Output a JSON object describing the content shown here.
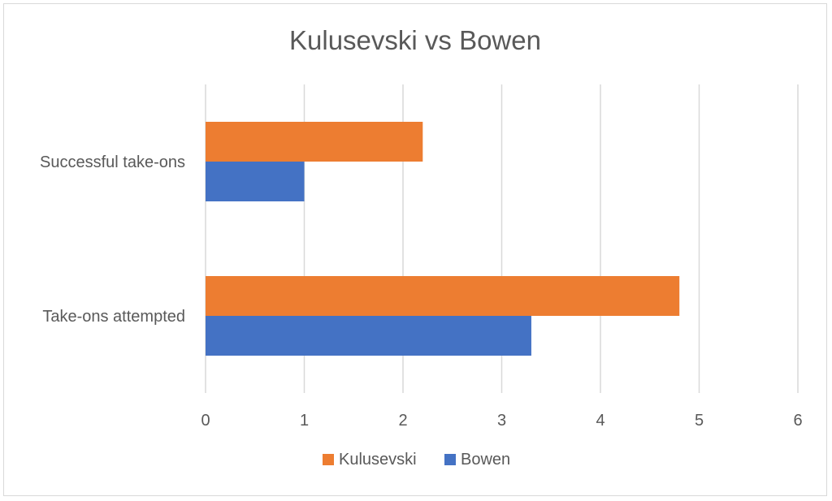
{
  "chart_data": {
    "type": "bar",
    "orientation": "horizontal",
    "title": "Kulusevski vs Bowen",
    "categories": [
      "Successful take-ons",
      "Take-ons attempted"
    ],
    "series": [
      {
        "name": "Kulusevski",
        "color": "#ED7D31",
        "values": [
          2.2,
          4.8
        ]
      },
      {
        "name": "Bowen",
        "color": "#4472C4",
        "values": [
          1.0,
          3.3
        ]
      }
    ],
    "xlim": [
      0,
      6
    ],
    "xticks": [
      "0",
      "1",
      "2",
      "3",
      "4",
      "5",
      "6"
    ],
    "grid": true,
    "legend": "bottom"
  }
}
